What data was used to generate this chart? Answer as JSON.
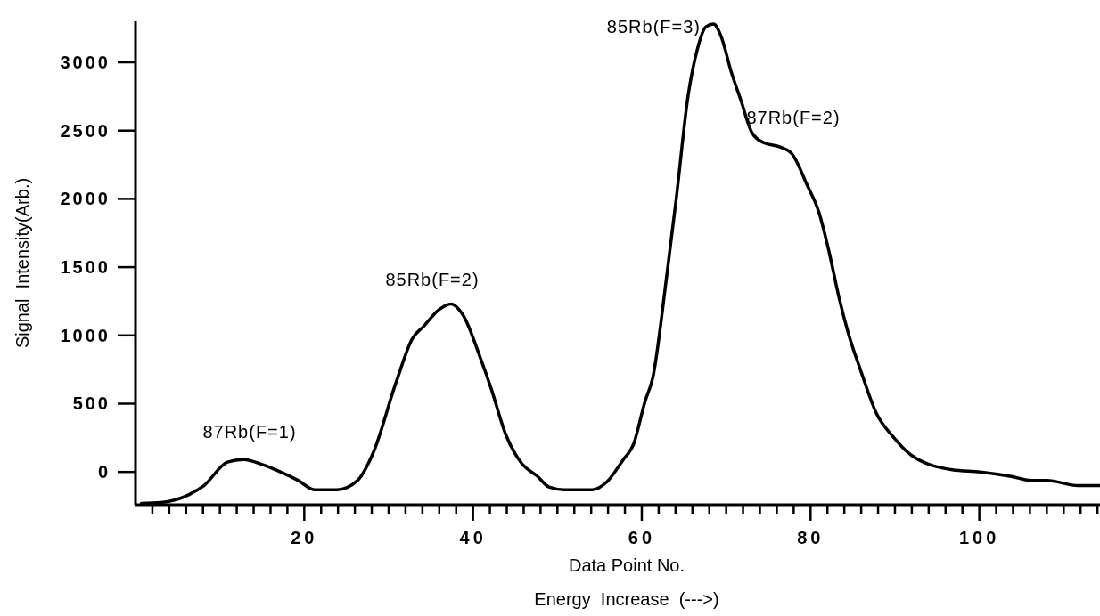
{
  "chart_data": {
    "type": "line",
    "xlabel": "Data Point No.",
    "ylabel": "Signal  Intensity(Arb.)",
    "annotations": [
      "87Rb(F=1)",
      "85Rb(F=2)",
      "85Rb(F=3)",
      "87Rb(F=2)",
      "Energy  Increase  (--->)"
    ],
    "series": [
      {
        "color": "#000000",
        "x": [
          0.7,
          3,
          6.3,
          8.1,
          10.9,
          12.8,
          15.1,
          17,
          19.3,
          21.2,
          23.9,
          26.3,
          28.1,
          30.9,
          32.8,
          34.2,
          36,
          37.4,
          38.8,
          40.9,
          42.1,
          43.9,
          45.8,
          47.6,
          49,
          50.8,
          54.1,
          55.9,
          57.8,
          59,
          60.4,
          61.3,
          62.9,
          64.1,
          65.5,
          66.6,
          67.6,
          68.5,
          69.4,
          70.6,
          71.7,
          73.1,
          74.5,
          76.4,
          77.8,
          79.6,
          81,
          82.2,
          83.4,
          84.5,
          85.9,
          87.8,
          89.9,
          92,
          96.8,
          100.1,
          103.8,
          106.1,
          108,
          111.7,
          114.3
        ],
        "values": [
          -230,
          -224,
          -167,
          -100,
          72,
          91,
          52,
          5,
          -63,
          -130,
          -130,
          -63,
          130,
          660,
          975,
          1070,
          1190,
          1230,
          1150,
          830,
          620,
          270,
          60,
          -30,
          -110,
          -130,
          -130,
          -70,
          90,
          200,
          520,
          690,
          1410,
          2010,
          2760,
          3100,
          3260,
          3280,
          3190,
          2930,
          2730,
          2480,
          2410,
          2380,
          2330,
          2100,
          1900,
          1610,
          1270,
          1010,
          750,
          430,
          250,
          120,
          16,
          0,
          -33,
          -62,
          -62,
          -100,
          -100
        ]
      }
    ],
    "xlim": [
      0,
      114.3
    ],
    "ylim": [
      -240,
      3300
    ],
    "xticks": [
      {
        "value": 2,
        "label": null
      },
      {
        "value": 4,
        "label": null
      },
      {
        "value": 6,
        "label": null
      },
      {
        "value": 8,
        "label": null
      },
      {
        "value": 10,
        "label": null
      },
      {
        "value": 12,
        "label": null
      },
      {
        "value": 14,
        "label": null
      },
      {
        "value": 16,
        "label": null
      },
      {
        "value": 18,
        "label": null
      },
      20,
      {
        "value": 22,
        "label": null
      },
      {
        "value": 24,
        "label": null
      },
      {
        "value": 26,
        "label": null
      },
      {
        "value": 28,
        "label": null
      },
      {
        "value": 30,
        "label": null
      },
      {
        "value": 32,
        "label": null
      },
      {
        "value": 34,
        "label": null
      },
      {
        "value": 36,
        "label": null
      },
      {
        "value": 38,
        "label": null
      },
      40,
      {
        "value": 42,
        "label": null
      },
      {
        "value": 44,
        "label": null
      },
      {
        "value": 46,
        "label": null
      },
      {
        "value": 48,
        "label": null
      },
      {
        "value": 50,
        "label": null
      },
      {
        "value": 52,
        "label": null
      },
      {
        "value": 54,
        "label": null
      },
      {
        "value": 56,
        "label": null
      },
      {
        "value": 58,
        "label": null
      },
      60,
      {
        "value": 62,
        "label": null
      },
      {
        "value": 64,
        "label": null
      },
      {
        "value": 66,
        "label": null
      },
      {
        "value": 68,
        "label": null
      },
      {
        "value": 70,
        "label": null
      },
      {
        "value": 72,
        "label": null
      },
      {
        "value": 74,
        "label": null
      },
      {
        "value": 76,
        "label": null
      },
      {
        "value": 78,
        "label": null
      },
      80,
      {
        "value": 82,
        "label": null
      },
      {
        "value": 84,
        "label": null
      },
      {
        "value": 86,
        "label": null
      },
      {
        "value": 88,
        "label": null
      },
      {
        "value": 90,
        "label": null
      },
      {
        "value": 92,
        "label": null
      },
      {
        "value": 94,
        "label": null
      },
      {
        "value": 96,
        "label": null
      },
      {
        "value": 98,
        "label": null
      },
      100,
      {
        "value": 102,
        "label": null
      },
      {
        "value": 104,
        "label": null
      },
      {
        "value": 106,
        "label": null
      },
      {
        "value": 108,
        "label": null
      },
      {
        "value": 110,
        "label": null
      },
      {
        "value": 112,
        "label": null
      },
      {
        "value": 114,
        "label": null
      }
    ],
    "yticks": [
      0,
      500,
      1000,
      1500,
      2000,
      2500,
      3000
    ],
    "grid": false
  }
}
